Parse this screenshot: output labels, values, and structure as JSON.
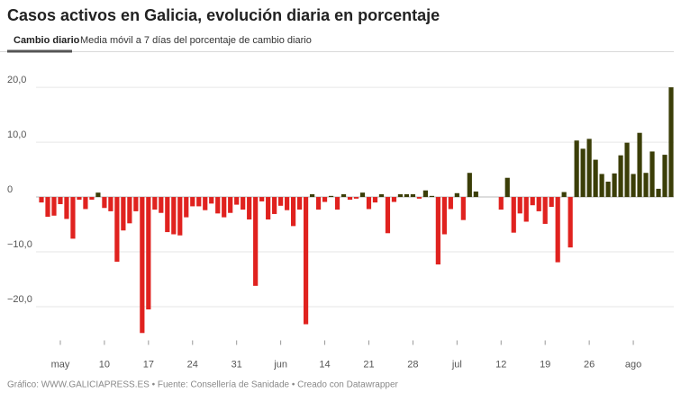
{
  "chart_data": {
    "type": "bar",
    "title": "Casos activos en Galicia, evolución diaria en porcentaje",
    "tabs": [
      "Cambio diario",
      "Media móvil a 7 días del porcentaje de cambio diario"
    ],
    "footer": "Gráfico: WWW.GALICIAPRESS.ES • Fuente: Consellería de Sanidade • Creado con Datawrapper",
    "categories": [
      null,
      null,
      null,
      "may",
      null,
      null,
      null,
      null,
      null,
      null,
      "10",
      null,
      null,
      null,
      null,
      null,
      null,
      "17",
      null,
      null,
      null,
      null,
      null,
      null,
      "24",
      null,
      null,
      null,
      null,
      null,
      null,
      "31",
      null,
      null,
      null,
      null,
      null,
      null,
      "jun",
      null,
      null,
      null,
      null,
      null,
      null,
      "14",
      null,
      null,
      null,
      null,
      null,
      null,
      "21",
      null,
      null,
      null,
      null,
      null,
      null,
      "28",
      null,
      null,
      null,
      null,
      null,
      null,
      "jul",
      null,
      null,
      null,
      null,
      null,
      null,
      "12",
      null,
      null,
      null,
      null,
      null,
      null,
      "19",
      null,
      null,
      null,
      null,
      null,
      null,
      "26",
      null,
      null,
      null,
      null,
      null,
      null,
      "ago",
      null,
      null,
      null,
      null,
      null,
      null
    ],
    "values": [
      -1.0,
      -3.6,
      -3.4,
      -1.3,
      -4.0,
      -7.6,
      -0.5,
      -2.2,
      -0.5,
      0.8,
      -2.0,
      -2.6,
      -11.8,
      -6.1,
      -4.8,
      -2.6,
      -24.8,
      -20.5,
      -2.3,
      -2.9,
      -6.4,
      -6.8,
      -7.0,
      -3.7,
      -1.7,
      -1.7,
      -2.4,
      -1.2,
      -3.0,
      -3.7,
      -2.9,
      -1.4,
      -2.3,
      -4.1,
      -16.2,
      -0.8,
      -4.1,
      -3.1,
      -1.6,
      -2.4,
      -5.3,
      -2.3,
      -23.2,
      0.5,
      -2.3,
      -0.9,
      0.2,
      -2.3,
      0.5,
      -0.5,
      -0.3,
      0.8,
      -2.2,
      -1.0,
      0.5,
      -6.6,
      -0.9,
      0.5,
      0.5,
      0.5,
      -0.3,
      1.2,
      0.2,
      -12.3,
      -6.8,
      -2.2,
      0.7,
      -4.2,
      4.4,
      1.0,
      0,
      0,
      0,
      -2.3,
      3.5,
      -6.5,
      -3.0,
      -4.5,
      -1.5,
      -2.6,
      -4.9,
      -1.8,
      -11.9,
      0.9,
      -9.2,
      10.3,
      8.8,
      10.6,
      6.8,
      4.2,
      2.8,
      4.3,
      7.6,
      9.9,
      4.2,
      11.7,
      4.4,
      8.3,
      1.5,
      7.7,
      20.0
    ],
    "colors": {
      "positive": "#3b3e08",
      "negative": "#e0221f"
    },
    "ylim": [
      -25,
      21
    ],
    "yticks": [
      {
        "value": 20,
        "label": "20,0"
      },
      {
        "value": 10,
        "label": "10,0"
      },
      0,
      {
        "value": -10,
        "label": "−10,0"
      },
      {
        "value": -20,
        "label": "−20,0"
      }
    ],
    "grid": true
  }
}
